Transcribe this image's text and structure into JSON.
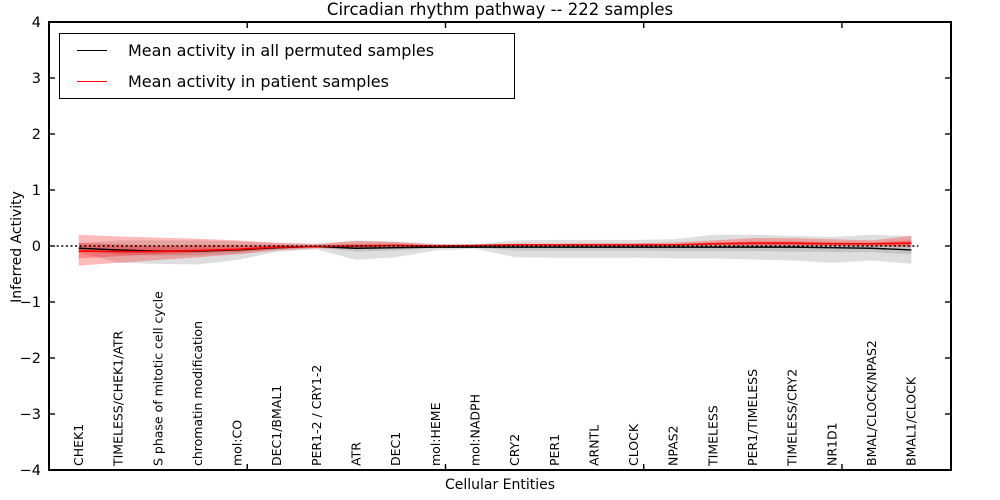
{
  "title": "Circadian rhythm pathway -- 222 samples",
  "legend": {
    "items": [
      {
        "label": "Mean activity in all permuted samples",
        "color": "#000000"
      },
      {
        "label": "Mean activity in patient samples",
        "color": "#ff0000"
      }
    ]
  },
  "chart_data": {
    "type": "line",
    "title": "Circadian rhythm pathway -- 222 samples",
    "xlabel": "Cellular Entities",
    "ylabel": "Inferred Activity",
    "ylim": [
      -4,
      4
    ],
    "ytick_values": [
      4,
      3,
      2,
      1,
      0,
      -1,
      -2,
      -3,
      -4
    ],
    "ytick_labels": [
      "4",
      "3",
      "2",
      "1",
      "0",
      "−1",
      "−2",
      "−3",
      "−4"
    ],
    "grid": false,
    "legend_position": "upper left",
    "baseline": 0,
    "categories": [
      "CHEK1",
      "TIMELESS/CHEK1/ATR",
      "S phase of mitotic cell cycle",
      "chromatin modification",
      "mol:CO",
      "DEC1/BMAL1",
      "PER1-2 / CRY1-2",
      "ATR",
      "DEC1",
      "mol:HEME",
      "mol:NADPH",
      "CRY2",
      "PER1",
      "ARNTL",
      "CLOCK",
      "NPAS2",
      "TIMELESS",
      "PER1/TIMELESS",
      "TIMELESS/CRY2",
      "NR1D1",
      "BMAL/CLOCK/NPAS2",
      "BMAL1/CLOCK"
    ],
    "series": [
      {
        "name": "Mean activity in all permuted samples",
        "color": "#000000",
        "line_width": 1.4,
        "values": [
          -0.04,
          -0.07,
          -0.09,
          -0.09,
          -0.07,
          -0.03,
          -0.01,
          -0.04,
          -0.03,
          -0.02,
          -0.02,
          -0.02,
          -0.02,
          -0.02,
          -0.02,
          -0.02,
          -0.02,
          -0.02,
          -0.02,
          -0.03,
          -0.04,
          -0.07
        ]
      },
      {
        "name": "Mean activity in patient samples",
        "color": "#ff0000",
        "line_width": 1.6,
        "values": [
          -0.09,
          -0.1,
          -0.1,
          -0.08,
          -0.06,
          -0.02,
          -0.01,
          0.0,
          0.01,
          0.0,
          0.01,
          0.02,
          0.02,
          0.02,
          0.02,
          0.02,
          0.04,
          0.05,
          0.05,
          0.04,
          0.04,
          0.05
        ]
      }
    ],
    "bands": [
      {
        "name": "permuted-band-outer",
        "color": "rgba(0,0,0,0.13)",
        "upper": [
          0.05,
          0.1,
          0.1,
          0.1,
          0.08,
          0.05,
          0.03,
          0.1,
          0.08,
          0.04,
          0.03,
          0.1,
          0.11,
          0.11,
          0.11,
          0.12,
          0.2,
          0.2,
          0.18,
          0.16,
          0.2,
          0.18
        ],
        "lower": [
          -0.12,
          -0.3,
          -0.32,
          -0.33,
          -0.25,
          -0.1,
          -0.06,
          -0.25,
          -0.2,
          -0.08,
          -0.05,
          -0.2,
          -0.21,
          -0.21,
          -0.21,
          -0.22,
          -0.22,
          -0.24,
          -0.26,
          -0.3,
          -0.26,
          -0.32
        ]
      },
      {
        "name": "permuted-band-inner",
        "color": "rgba(0,0,0,0.11)",
        "upper": [
          0.0,
          -0.01,
          -0.02,
          -0.02,
          -0.02,
          0.0,
          0.0,
          0.01,
          0.01,
          0.0,
          0.0,
          0.02,
          0.02,
          0.02,
          0.02,
          0.02,
          0.05,
          0.05,
          0.04,
          0.04,
          0.04,
          0.02
        ],
        "lower": [
          -0.08,
          -0.15,
          -0.17,
          -0.17,
          -0.13,
          -0.06,
          -0.03,
          -0.1,
          -0.08,
          -0.04,
          -0.03,
          -0.08,
          -0.08,
          -0.08,
          -0.08,
          -0.09,
          -0.09,
          -0.09,
          -0.1,
          -0.11,
          -0.11,
          -0.15
        ]
      },
      {
        "name": "patient-band-outer",
        "color": "rgba(255,0,0,0.27)",
        "upper": [
          0.2,
          0.17,
          0.15,
          0.13,
          0.1,
          0.06,
          0.04,
          0.09,
          0.07,
          0.03,
          0.02,
          0.04,
          0.04,
          0.05,
          0.05,
          0.06,
          0.1,
          0.14,
          0.14,
          0.12,
          0.1,
          0.18
        ],
        "lower": [
          -0.35,
          -0.3,
          -0.25,
          -0.2,
          -0.15,
          -0.08,
          -0.04,
          -0.05,
          -0.04,
          -0.02,
          -0.02,
          0.0,
          0.0,
          0.0,
          0.0,
          0.0,
          0.0,
          0.0,
          0.0,
          0.0,
          -0.01,
          -0.02
        ]
      },
      {
        "name": "patient-band-inner",
        "color": "rgba(255,0,0,0.28)",
        "upper": [
          0.06,
          0.03,
          0.01,
          0.02,
          0.02,
          0.02,
          0.01,
          0.04,
          0.04,
          0.01,
          0.01,
          0.03,
          0.03,
          0.03,
          0.03,
          0.03,
          0.06,
          0.08,
          0.08,
          0.07,
          0.06,
          0.1
        ],
        "lower": [
          -0.22,
          -0.18,
          -0.15,
          -0.12,
          -0.1,
          -0.05,
          -0.02,
          -0.02,
          -0.01,
          -0.01,
          -0.01,
          0.01,
          0.01,
          0.01,
          0.01,
          0.01,
          0.02,
          0.02,
          0.02,
          0.01,
          0.01,
          0.01
        ]
      }
    ]
  }
}
